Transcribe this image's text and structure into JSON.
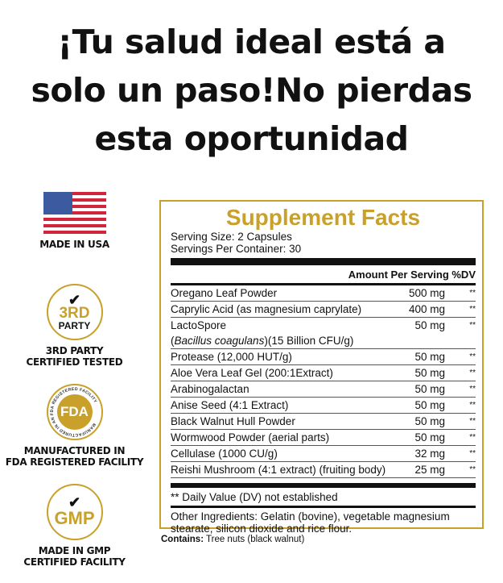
{
  "headline": [
    "¡Tu salud ideal está a",
    "solo un paso!No pierdas",
    "esta oportunidad"
  ],
  "colors": {
    "gold": "#c9a02a",
    "text": "#111111"
  },
  "badges": [
    {
      "icon": "us-flag-icon",
      "lines": [
        "MADE IN USA"
      ]
    },
    {
      "icon": "3rd-party-seal-icon",
      "seal": [
        "3RD",
        "PARTY"
      ],
      "lines": [
        "3RD PARTY",
        "CERTIFIED TESTED"
      ]
    },
    {
      "icon": "fda-seal-icon",
      "seal": [
        "FDA"
      ],
      "ring_text": "MANUFACTURED IN AN FDA REGISTERED FACILITY",
      "lines": [
        "MANUFACTURED IN",
        "FDA REGISTERED FACILITY"
      ]
    },
    {
      "icon": "gmp-seal-icon",
      "seal": [
        "GMP"
      ],
      "lines": [
        "MADE IN GMP",
        "CERTIFIED FACILITY"
      ]
    }
  ],
  "facts": {
    "title": "Supplement Facts",
    "serving_size": "Serving Size:  2 Capsules",
    "servings_per_container": "Servings Per Container: 30",
    "header": "Amount Per Serving  %DV",
    "rows": [
      {
        "name": "Oregano Leaf Powder",
        "amount": "500 mg",
        "dv": "**"
      },
      {
        "name": "Caprylic Acid (as magnesium caprylate)",
        "amount": "400 mg",
        "dv": "**"
      },
      {
        "name": "LactoSpore",
        "sub_italic": "Bacillus coagulans",
        "sub_rest": "(15 Billion CFU/g)",
        "amount": "50 mg",
        "dv": "**"
      },
      {
        "name": "Protease (12,000 HUT/g)",
        "amount": "50 mg",
        "dv": "**"
      },
      {
        "name": "Aloe Vera Leaf Gel (200:1Extract)",
        "amount": "50 mg",
        "dv": "**"
      },
      {
        "name": "Arabinogalactan",
        "amount": "50 mg",
        "dv": "**"
      },
      {
        "name": "Anise Seed (4:1 Extract)",
        "amount": "50 mg",
        "dv": "**"
      },
      {
        "name": "Black Walnut Hull Powder",
        "amount": "50 mg",
        "dv": "**"
      },
      {
        "name": "Wormwood Powder (aerial parts)",
        "amount": "50 mg",
        "dv": "**"
      },
      {
        "name": "Cellulase (1000 CU/g)",
        "amount": "32 mg",
        "dv": "**"
      },
      {
        "name": "Reishi Mushroom (4:1 extract) (fruiting body)",
        "amount": "25 mg",
        "dv": "**"
      }
    ],
    "dv_note": "** Daily Value (DV) not established",
    "other_ingredients": "Other Ingredients: Gelatin (bovine), vegetable magnesium stearate, silicon dioxide and rice flour."
  },
  "contains": {
    "label": "Contains:",
    "text": " Tree nuts (black walnut)"
  }
}
